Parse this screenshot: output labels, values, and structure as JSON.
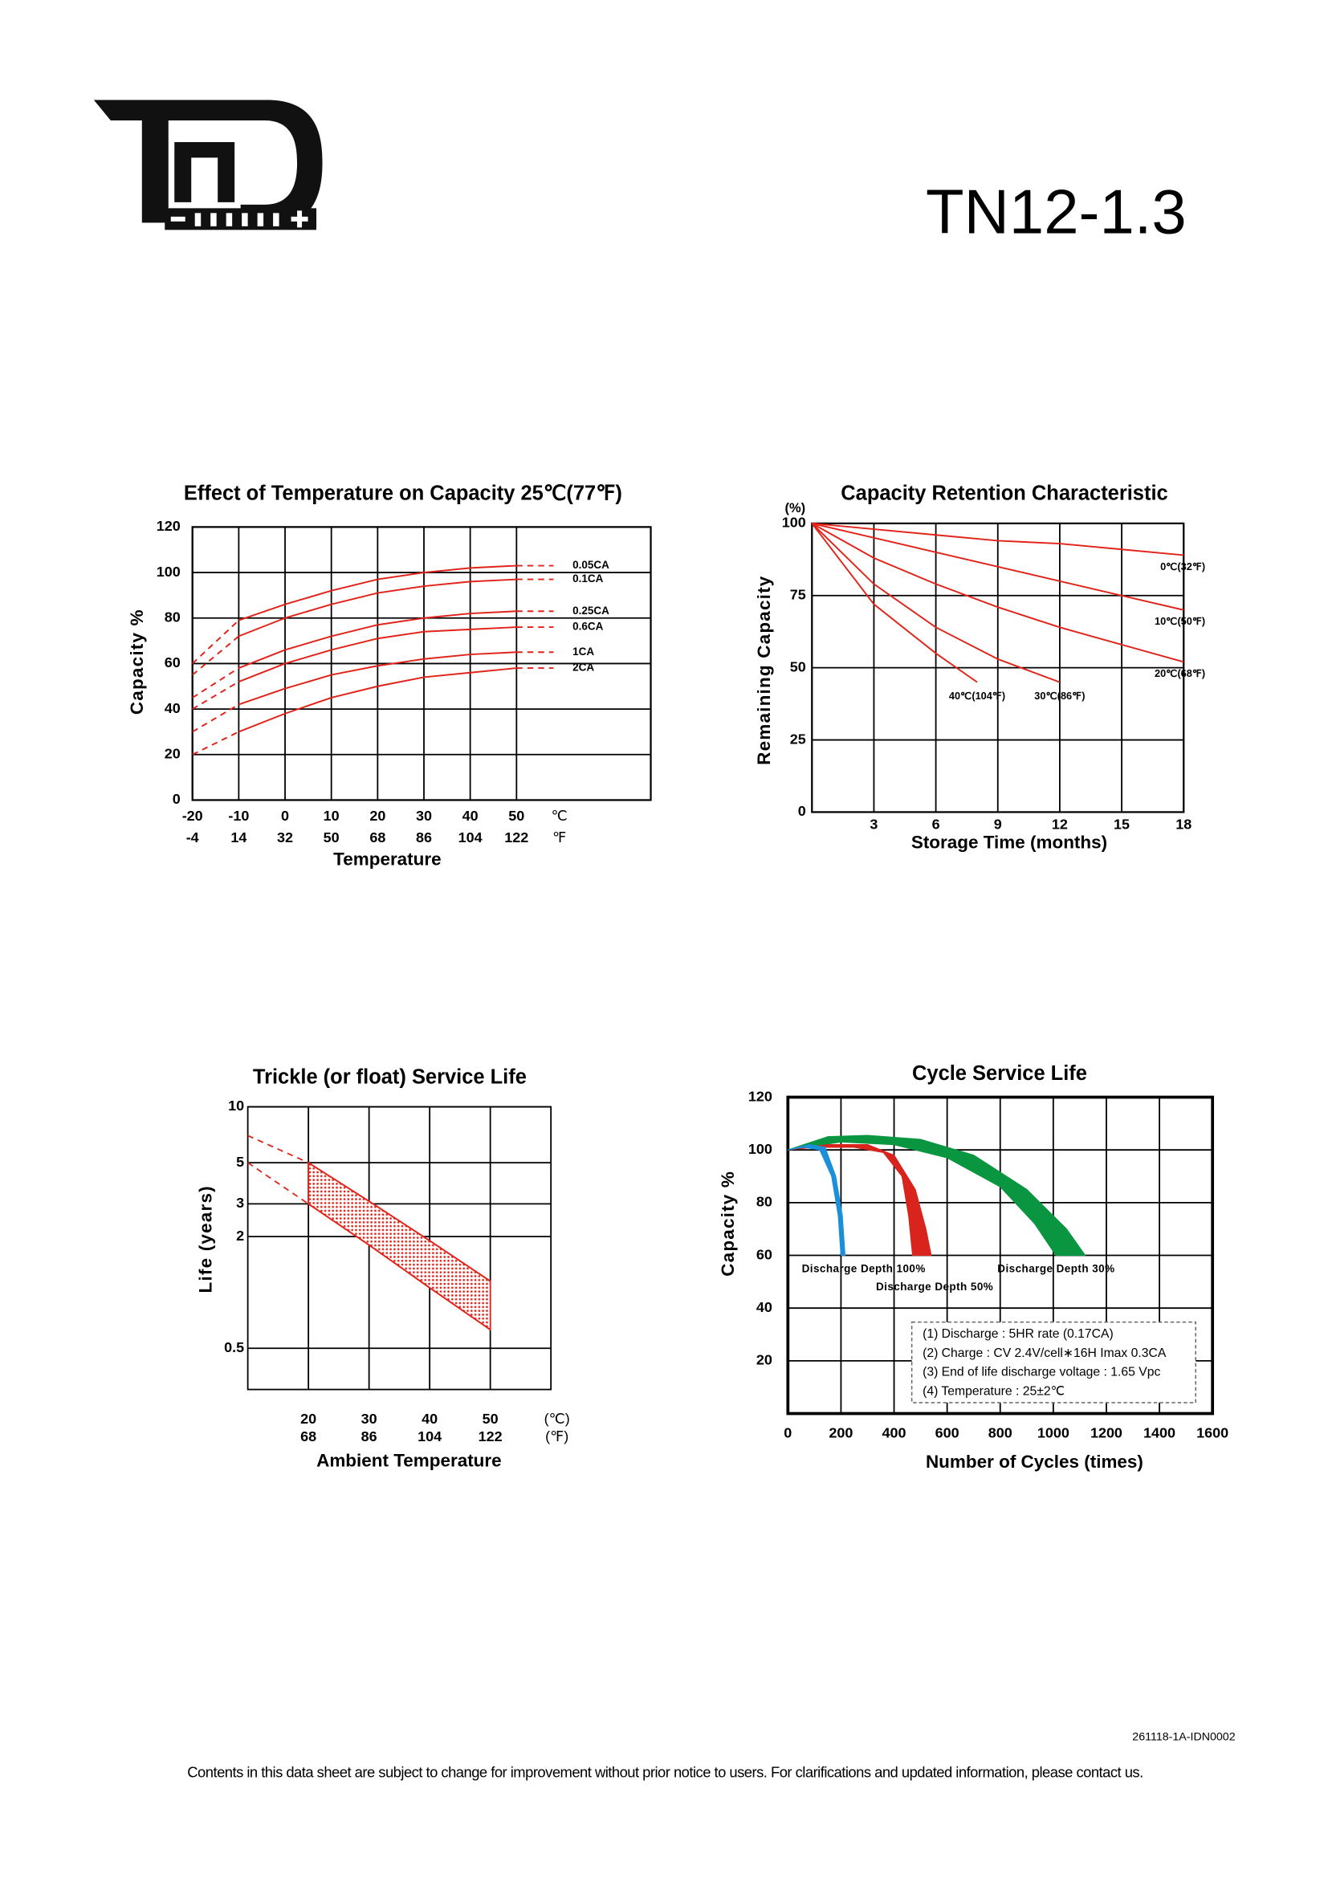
{
  "header": {
    "model": "TN12-1.3"
  },
  "chart_data": [
    {
      "type": "line",
      "title": "Effect of Temperature on Capacity  25℃(77℉)",
      "x_label": "Temperature",
      "y_label": "Capacity %",
      "x_unit": "℃",
      "x2_unit": "℉",
      "x": [
        -20,
        -10,
        0,
        10,
        20,
        30,
        40,
        50,
        58
      ],
      "xlim": [
        -20,
        79
      ],
      "xticks": [
        -20,
        -10,
        0,
        10,
        20,
        30,
        40,
        50
      ],
      "x2ticks": [
        -4,
        14,
        32,
        50,
        68,
        86,
        104,
        122
      ],
      "ylim": [
        0,
        120
      ],
      "yticks": [
        0,
        20,
        40,
        60,
        80,
        100,
        120
      ],
      "grid": true,
      "series": [
        {
          "name": "0.05CA",
          "color": "#e2231a",
          "values": [
            60,
            79,
            86,
            92,
            97,
            100,
            102,
            103,
            103
          ]
        },
        {
          "name": "0.1CA",
          "color": "#e2231a",
          "values": [
            55,
            72,
            80,
            86,
            91,
            94,
            96,
            97,
            97
          ]
        },
        {
          "name": "0.25CA",
          "color": "#e2231a",
          "values": [
            45,
            58,
            66,
            72,
            77,
            80,
            82,
            83,
            83
          ]
        },
        {
          "name": "0.6CA",
          "color": "#e2231a",
          "values": [
            40,
            52,
            60,
            66,
            71,
            74,
            75,
            76,
            76
          ]
        },
        {
          "name": "1CA",
          "color": "#e2231a",
          "values": [
            30,
            42,
            49,
            55,
            59,
            62,
            64,
            65,
            65
          ]
        },
        {
          "name": "2CA",
          "color": "#e2231a",
          "values": [
            20,
            30,
            38,
            45,
            50,
            54,
            56,
            58,
            58
          ]
        }
      ]
    },
    {
      "type": "line",
      "title": "Capacity Retention Characteristic",
      "x_label": "Storage Time (months)",
      "y_label": "Remaining Capacity",
      "y_unit": "(%)",
      "xlim": [
        0,
        18
      ],
      "xticks": [
        3,
        6,
        9,
        12,
        15,
        18
      ],
      "ylim": [
        0,
        100
      ],
      "yticks": [
        0,
        25,
        50,
        75,
        100
      ],
      "grid": true,
      "series": [
        {
          "name": "0℃(32℉)",
          "color": "#e2231a",
          "x": [
            0,
            3,
            6,
            9,
            12,
            15,
            18
          ],
          "values": [
            100,
            98,
            96,
            94,
            93,
            91,
            89
          ]
        },
        {
          "name": "10℃(50℉)",
          "color": "#e2231a",
          "x": [
            0,
            3,
            6,
            9,
            12,
            15,
            18
          ],
          "values": [
            100,
            95,
            90,
            85,
            80,
            75,
            70
          ]
        },
        {
          "name": "20℃(68℉)",
          "color": "#e2231a",
          "x": [
            0,
            3,
            6,
            9,
            12,
            15,
            18
          ],
          "values": [
            100,
            88,
            79,
            71,
            64,
            58,
            52
          ]
        },
        {
          "name": "30℃(86℉)",
          "color": "#e2231a",
          "x": [
            0,
            3,
            6,
            9,
            12
          ],
          "values": [
            100,
            79,
            64,
            53,
            45
          ]
        },
        {
          "name": "40℃(104℉)",
          "color": "#e2231a",
          "x": [
            0,
            3,
            6,
            8
          ],
          "values": [
            100,
            72,
            55,
            45
          ]
        }
      ]
    },
    {
      "type": "band",
      "title": "Trickle (or float) Service Life",
      "x_label": "Ambient Temperature",
      "y_label": "Life (years)",
      "x_unit": "(℃)",
      "x2_unit": "(℉)",
      "log": true,
      "xlim": [
        10,
        60
      ],
      "xticks": [
        20,
        30,
        40,
        50
      ],
      "x2ticks": [
        68,
        86,
        104,
        122
      ],
      "ylim": [
        0.3,
        10
      ],
      "yticks": [
        0.5,
        2,
        3,
        5,
        10
      ],
      "grid": true,
      "color": "#e2231a",
      "x": [
        10,
        20,
        30,
        40,
        50
      ],
      "upper": [
        7,
        5,
        3.1,
        1.9,
        1.15
      ],
      "lower": [
        5,
        3,
        1.8,
        1.06,
        0.63
      ]
    },
    {
      "type": "area",
      "title": "Cycle Service Life",
      "x_label": "Number of Cycles (times)",
      "y_label": "Capacity %",
      "xlim": [
        0,
        1600
      ],
      "xticks": [
        0,
        200,
        400,
        600,
        800,
        1000,
        1200,
        1400,
        1600
      ],
      "ylim": [
        0,
        120
      ],
      "yticks": [
        20,
        40,
        60,
        80,
        100,
        120
      ],
      "grid": true,
      "series": [
        {
          "name": "Discharge Depth 100%",
          "color": "#1b8fd8",
          "x": [
            0,
            80,
            140,
            180,
            205,
            215,
            200,
            190,
            165,
            120,
            60,
            0
          ],
          "values": [
            100,
            102,
            101,
            90,
            75,
            60,
            60,
            75,
            90,
            100,
            101,
            100
          ]
        },
        {
          "name": "Discharge Depth 50%",
          "color": "#d8241c",
          "x": [
            0,
            150,
            300,
            400,
            480,
            520,
            540,
            470,
            455,
            430,
            360,
            250,
            100,
            0
          ],
          "values": [
            100,
            102,
            102,
            98,
            85,
            70,
            60,
            60,
            75,
            90,
            99,
            101,
            101,
            100
          ]
        },
        {
          "name": "Discharge Depth 30%",
          "color": "#0a9640",
          "x": [
            0,
            150,
            300,
            500,
            700,
            900,
            1050,
            1120,
            1010,
            930,
            800,
            600,
            400,
            200,
            0
          ],
          "values": [
            100,
            105,
            105.5,
            104,
            98,
            85,
            70,
            60,
            60,
            72,
            86,
            97,
            102,
            103,
            100
          ]
        }
      ],
      "notes": [
        "(1) Discharge : 5HR rate (0.17CA)",
        "(2) Charge : CV 2.4V/cell∗16H Imax 0.3CA",
        "(3) End of life discharge voltage : 1.65 Vpc",
        "(4) Temperature : 25±2℃"
      ]
    }
  ],
  "footer": {
    "code": "261118-1A-IDN0002",
    "notice": "Contents in this data sheet are subject to change for improvement without prior notice to users. For clarifications and updated information, please contact us."
  }
}
